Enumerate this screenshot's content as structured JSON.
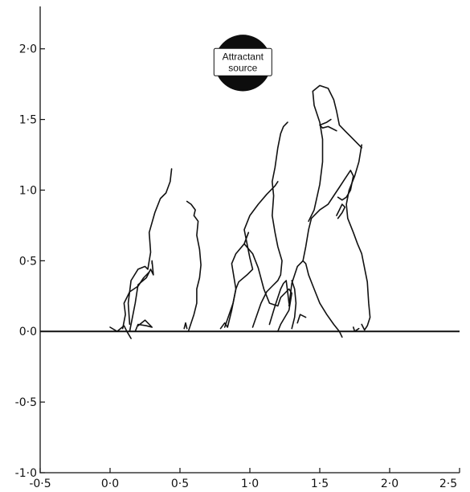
{
  "chart_data": {
    "type": "line",
    "title": "",
    "xlabel": "",
    "ylabel": "",
    "xlim": [
      -0.5,
      2.5
    ],
    "ylim": [
      -1.0,
      2.3
    ],
    "x_ticks": [
      {
        "value": -0.5,
        "label": "-0·5"
      },
      {
        "value": 0.0,
        "label": "0·0"
      },
      {
        "value": 0.5,
        "label": "0·5"
      },
      {
        "value": 1.0,
        "label": "1·0"
      },
      {
        "value": 1.5,
        "label": "1·5"
      },
      {
        "value": 2.0,
        "label": "2·0"
      },
      {
        "value": 2.5,
        "label": "2·5"
      }
    ],
    "y_ticks": [
      {
        "value": -1.0,
        "label": "-1·0"
      },
      {
        "value": -0.5,
        "label": "-0·5"
      },
      {
        "value": 0.0,
        "label": "0·0"
      },
      {
        "value": 0.5,
        "label": "0·5"
      },
      {
        "value": 1.0,
        "label": "1·0"
      },
      {
        "value": 1.5,
        "label": "1·5"
      },
      {
        "value": 2.0,
        "label": "2·0"
      }
    ],
    "grid": false,
    "reference_line_y": 0.0,
    "annotations": [
      {
        "text_lines": [
          "Attractant",
          "source"
        ],
        "x": 0.95,
        "y": 1.9,
        "radius": 0.2
      }
    ],
    "series": [
      {
        "points": [
          [
            0.0,
            0.03
          ],
          [
            0.05,
            0.0
          ],
          [
            0.1,
            0.04
          ],
          [
            0.12,
            0.0
          ],
          [
            0.15,
            -0.05
          ]
        ]
      },
      {
        "points": [
          [
            0.14,
            0.05
          ],
          [
            0.13,
            0.2
          ],
          [
            0.15,
            0.36
          ],
          [
            0.2,
            0.44
          ],
          [
            0.25,
            0.46
          ],
          [
            0.27,
            0.44
          ],
          [
            0.29,
            0.56
          ],
          [
            0.28,
            0.7
          ],
          [
            0.32,
            0.84
          ],
          [
            0.36,
            0.94
          ],
          [
            0.4,
            0.98
          ],
          [
            0.43,
            1.06
          ],
          [
            0.44,
            1.15
          ]
        ]
      },
      {
        "points": [
          [
            0.14,
            0.0
          ],
          [
            0.18,
            0.2
          ],
          [
            0.2,
            0.33
          ],
          [
            0.26,
            0.38
          ],
          [
            0.29,
            0.44
          ],
          [
            0.31,
            0.4
          ],
          [
            0.3,
            0.5
          ],
          [
            0.3,
            0.48
          ]
        ]
      },
      {
        "points": [
          [
            0.18,
            0.0
          ],
          [
            0.2,
            0.05
          ],
          [
            0.26,
            0.04
          ],
          [
            0.3,
            0.03
          ],
          [
            0.25,
            0.08
          ],
          [
            0.2,
            0.04
          ]
        ]
      },
      {
        "points": [
          [
            0.09,
            0.02
          ],
          [
            0.11,
            0.12
          ],
          [
            0.1,
            0.2
          ],
          [
            0.14,
            0.28
          ],
          [
            0.2,
            0.32
          ],
          [
            0.24,
            0.38
          ],
          [
            0.28,
            0.42
          ]
        ]
      },
      {
        "points": [
          [
            0.56,
            0.0
          ],
          [
            0.6,
            0.12
          ],
          [
            0.62,
            0.2
          ],
          [
            0.62,
            0.3
          ],
          [
            0.64,
            0.38
          ],
          [
            0.65,
            0.47
          ],
          [
            0.64,
            0.58
          ],
          [
            0.62,
            0.68
          ],
          [
            0.63,
            0.78
          ],
          [
            0.6,
            0.82
          ],
          [
            0.61,
            0.86
          ],
          [
            0.58,
            0.9
          ],
          [
            0.55,
            0.92
          ]
        ]
      },
      {
        "points": [
          [
            0.53,
            0.02
          ],
          [
            0.54,
            0.06
          ],
          [
            0.55,
            0.02
          ]
        ]
      },
      {
        "points": [
          [
            0.79,
            0.02
          ],
          [
            0.82,
            0.06
          ],
          [
            0.84,
            0.03
          ],
          [
            0.87,
            0.15
          ],
          [
            0.9,
            0.3
          ],
          [
            0.92,
            0.35
          ],
          [
            0.98,
            0.4
          ],
          [
            1.02,
            0.44
          ],
          [
            1.0,
            0.52
          ],
          [
            0.98,
            0.62
          ],
          [
            0.96,
            0.72
          ],
          [
            1.0,
            0.82
          ],
          [
            1.06,
            0.9
          ],
          [
            1.12,
            0.97
          ],
          [
            1.18,
            1.03
          ],
          [
            1.2,
            1.06
          ]
        ]
      },
      {
        "points": [
          [
            0.82,
            0.03
          ],
          [
            0.88,
            0.2
          ],
          [
            0.9,
            0.3
          ],
          [
            0.87,
            0.48
          ],
          [
            0.9,
            0.55
          ],
          [
            0.96,
            0.62
          ],
          [
            0.99,
            0.7
          ]
        ]
      },
      {
        "points": [
          [
            0.96,
            0.62
          ],
          [
            1.02,
            0.55
          ],
          [
            1.06,
            0.45
          ],
          [
            1.1,
            0.3
          ],
          [
            1.14,
            0.2
          ],
          [
            1.2,
            0.18
          ],
          [
            1.22,
            0.24
          ],
          [
            1.28,
            0.3
          ],
          [
            1.3,
            0.27
          ],
          [
            1.28,
            0.15
          ],
          [
            1.22,
            0.05
          ],
          [
            1.2,
            0.0
          ]
        ]
      },
      {
        "points": [
          [
            1.02,
            0.03
          ],
          [
            1.08,
            0.2
          ],
          [
            1.12,
            0.28
          ],
          [
            1.16,
            0.32
          ],
          [
            1.2,
            0.36
          ],
          [
            1.22,
            0.4
          ],
          [
            1.23,
            0.5
          ],
          [
            1.2,
            0.6
          ],
          [
            1.18,
            0.7
          ],
          [
            1.16,
            0.82
          ],
          [
            1.17,
            0.96
          ],
          [
            1.16,
            1.06
          ],
          [
            1.18,
            1.16
          ],
          [
            1.2,
            1.3
          ],
          [
            1.22,
            1.4
          ],
          [
            1.24,
            1.45
          ],
          [
            1.27,
            1.48
          ]
        ]
      },
      {
        "points": [
          [
            1.14,
            0.05
          ],
          [
            1.18,
            0.18
          ],
          [
            1.22,
            0.3
          ],
          [
            1.24,
            0.34
          ],
          [
            1.26,
            0.36
          ],
          [
            1.27,
            0.28
          ],
          [
            1.28,
            0.2
          ]
        ]
      },
      {
        "points": [
          [
            1.28,
            0.18
          ],
          [
            1.3,
            0.34
          ],
          [
            1.34,
            0.46
          ],
          [
            1.38,
            0.5
          ],
          [
            1.4,
            0.48
          ],
          [
            1.42,
            0.4
          ],
          [
            1.46,
            0.3
          ],
          [
            1.5,
            0.2
          ],
          [
            1.55,
            0.12
          ],
          [
            1.6,
            0.05
          ],
          [
            1.64,
            0.0
          ],
          [
            1.66,
            -0.04
          ]
        ]
      },
      {
        "points": [
          [
            1.3,
            0.02
          ],
          [
            1.32,
            0.1
          ],
          [
            1.33,
            0.2
          ],
          [
            1.32,
            0.3
          ],
          [
            1.3,
            0.36
          ]
        ]
      },
      {
        "points": [
          [
            1.34,
            0.06
          ],
          [
            1.36,
            0.12
          ],
          [
            1.4,
            0.1
          ]
        ]
      },
      {
        "points": [
          [
            1.38,
            0.5
          ],
          [
            1.4,
            0.6
          ],
          [
            1.42,
            0.72
          ],
          [
            1.44,
            0.8
          ],
          [
            1.5,
            0.86
          ],
          [
            1.56,
            0.9
          ],
          [
            1.6,
            0.96
          ],
          [
            1.64,
            1.02
          ],
          [
            1.68,
            1.08
          ],
          [
            1.72,
            1.14
          ],
          [
            1.74,
            1.1
          ],
          [
            1.72,
            1.0
          ],
          [
            1.69,
            0.95
          ],
          [
            1.66,
            0.93
          ],
          [
            1.63,
            0.95
          ]
        ]
      },
      {
        "points": [
          [
            1.42,
            0.78
          ],
          [
            1.46,
            0.86
          ],
          [
            1.5,
            1.04
          ],
          [
            1.52,
            1.2
          ],
          [
            1.52,
            1.36
          ],
          [
            1.5,
            1.48
          ],
          [
            1.46,
            1.6
          ],
          [
            1.45,
            1.7
          ],
          [
            1.5,
            1.74
          ],
          [
            1.56,
            1.72
          ],
          [
            1.6,
            1.64
          ],
          [
            1.62,
            1.56
          ],
          [
            1.64,
            1.46
          ],
          [
            1.68,
            1.42
          ],
          [
            1.72,
            1.38
          ],
          [
            1.76,
            1.34
          ],
          [
            1.8,
            1.3
          ]
        ]
      },
      {
        "points": [
          [
            1.8,
            1.32
          ],
          [
            1.78,
            1.2
          ],
          [
            1.75,
            1.1
          ],
          [
            1.71,
            1.0
          ],
          [
            1.69,
            0.9
          ],
          [
            1.7,
            0.8
          ],
          [
            1.74,
            0.7
          ],
          [
            1.77,
            0.62
          ],
          [
            1.8,
            0.55
          ],
          [
            1.82,
            0.45
          ],
          [
            1.84,
            0.35
          ],
          [
            1.85,
            0.2
          ],
          [
            1.86,
            0.1
          ],
          [
            1.84,
            0.04
          ],
          [
            1.82,
            0.01
          ],
          [
            1.8,
            0.05
          ]
        ]
      },
      {
        "points": [
          [
            1.58,
            1.5
          ],
          [
            1.55,
            1.48
          ],
          [
            1.5,
            1.46
          ],
          [
            1.52,
            1.44
          ],
          [
            1.56,
            1.45
          ],
          [
            1.62,
            1.42
          ]
        ]
      },
      {
        "points": [
          [
            1.62,
            0.82
          ],
          [
            1.64,
            0.86
          ],
          [
            1.66,
            0.9
          ],
          [
            1.68,
            0.88
          ],
          [
            1.66,
            0.84
          ],
          [
            1.63,
            0.8
          ]
        ]
      },
      {
        "points": [
          [
            1.74,
            0.03
          ],
          [
            1.75,
            0.0
          ],
          [
            1.78,
            0.02
          ]
        ]
      }
    ]
  }
}
